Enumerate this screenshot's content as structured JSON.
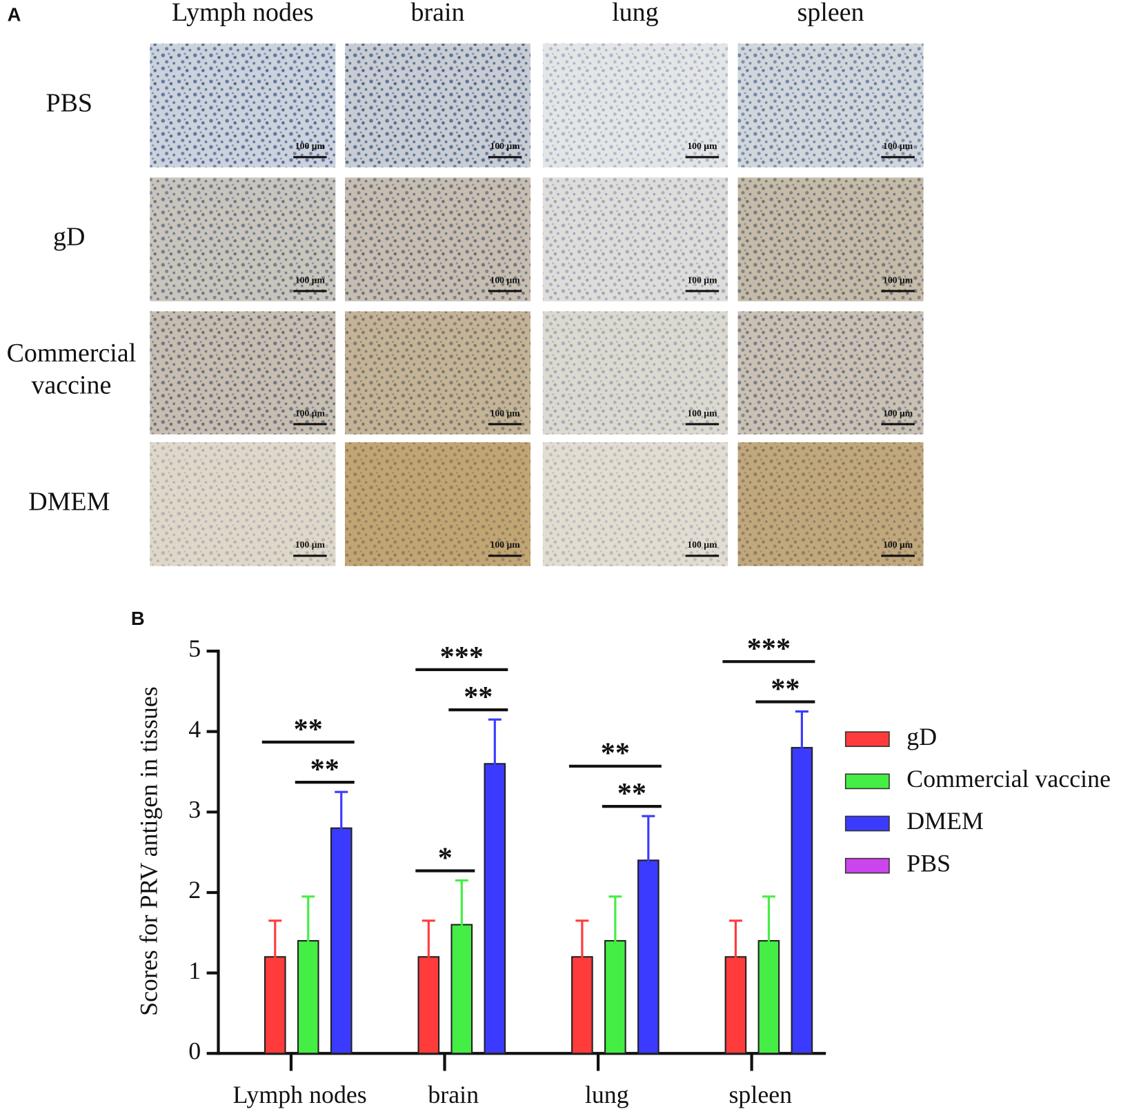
{
  "panel_a": {
    "label": "A",
    "columns": [
      "Lymph nodes",
      "brain",
      "lung",
      "spleen"
    ],
    "rows": [
      "PBS",
      "gD",
      "Commercial vaccine",
      "DMEM"
    ],
    "scale_bar": "100 μm"
  },
  "chart_data": {
    "type": "bar",
    "panel_label": "B",
    "y_label": "Scores for PRV antigen in tissues",
    "categories": [
      "Lymph nodes",
      "brain",
      "lung",
      "spleen"
    ],
    "series": [
      {
        "name": "gD",
        "color": "#ff3b3b",
        "values": [
          1.2,
          1.2,
          1.2,
          1.2
        ],
        "errors": [
          0.45,
          0.45,
          0.45,
          0.45
        ]
      },
      {
        "name": "Commercial vaccine",
        "color": "#44ee44",
        "values": [
          1.4,
          1.6,
          1.4,
          1.4
        ],
        "errors": [
          0.55,
          0.55,
          0.55,
          0.55
        ]
      },
      {
        "name": "DMEM",
        "color": "#3b3bff",
        "values": [
          2.8,
          3.6,
          2.4,
          3.8
        ],
        "errors": [
          0.45,
          0.55,
          0.55,
          0.45
        ]
      },
      {
        "name": "PBS",
        "color": "#cc44ee",
        "values": [
          0,
          0,
          0,
          0
        ],
        "errors": [
          0,
          0,
          0,
          0
        ]
      }
    ],
    "significance": [
      {
        "category": 0,
        "from": 1,
        "to": 2,
        "label": "**"
      },
      {
        "category": 0,
        "from": 0,
        "to": 2,
        "label": "**"
      },
      {
        "category": 1,
        "from": 0,
        "to": 1,
        "label": "*"
      },
      {
        "category": 1,
        "from": 1,
        "to": 2,
        "label": "**"
      },
      {
        "category": 1,
        "from": 0,
        "to": 2,
        "label": "***"
      },
      {
        "category": 2,
        "from": 1,
        "to": 2,
        "label": "**"
      },
      {
        "category": 2,
        "from": 0,
        "to": 2,
        "label": "**"
      },
      {
        "category": 3,
        "from": 1,
        "to": 2,
        "label": "**"
      },
      {
        "category": 3,
        "from": 0,
        "to": 2,
        "label": "***"
      }
    ],
    "ylim": [
      0,
      5
    ],
    "yticks": [
      0,
      1,
      2,
      3,
      4,
      5
    ],
    "legend": "right"
  }
}
